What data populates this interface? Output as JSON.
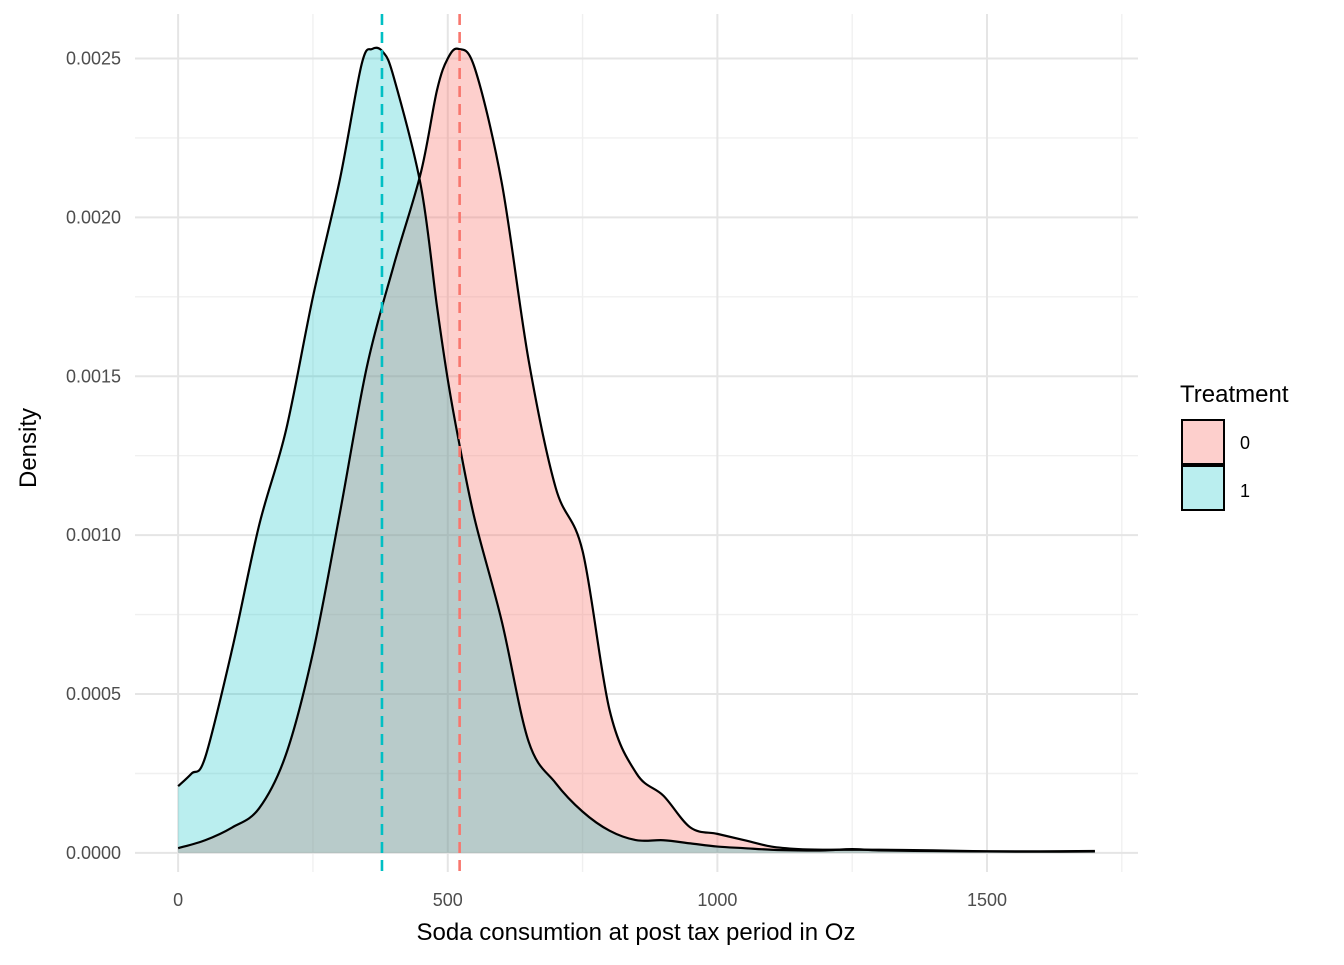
{
  "chart_data": {
    "type": "area",
    "subtype": "density",
    "title": "",
    "xlabel": "Soda consumtion at post tax period in Oz",
    "ylabel": "Density",
    "xlim": [
      -80,
      1780
    ],
    "ylim": [
      -6e-05,
      0.00264
    ],
    "x_ticks": [
      0,
      500,
      1000,
      1500
    ],
    "y_ticks": [
      0,
      0.0005,
      0.001,
      0.0015,
      0.002,
      0.0025
    ],
    "x_tick_labels": [
      "0",
      "500",
      "1000",
      "1500"
    ],
    "y_tick_labels": [
      "0.0000",
      "0.0005",
      "0.0010",
      "0.0015",
      "0.0020",
      "0.0025"
    ],
    "grid": true,
    "legend": {
      "title": "Treatment",
      "position": "right",
      "items": [
        {
          "label": "0",
          "color": "#F8766D"
        },
        {
          "label": "1",
          "color": "#00BFC4"
        }
      ]
    },
    "series": [
      {
        "name": "0",
        "color": "#F8766D",
        "fill_alpha": 0.35,
        "mean_line": 522,
        "x": [
          0,
          50,
          100,
          150,
          200,
          250,
          300,
          350,
          400,
          450,
          480,
          500,
          520,
          550,
          600,
          650,
          700,
          750,
          800,
          850,
          900,
          950,
          1000,
          1050,
          1100,
          1150,
          1200,
          1300,
          1400,
          1500,
          1600,
          1700
        ],
        "y": [
          1.5e-05,
          4e-05,
          8e-05,
          0.00014,
          0.00031,
          0.00063,
          0.00107,
          0.00153,
          0.00185,
          0.00214,
          0.0024,
          0.0025,
          0.00253,
          0.00247,
          0.00211,
          0.00155,
          0.00115,
          0.00095,
          0.00045,
          0.00025,
          0.00018,
          8e-05,
          6e-05,
          4e-05,
          2e-05,
          1.2e-05,
          1e-05,
          1e-05,
          8e-06,
          5e-06,
          4e-06,
          5e-06
        ]
      },
      {
        "name": "1",
        "color": "#00BFC4",
        "fill_alpha": 0.27,
        "mean_line": 378,
        "x": [
          0,
          25,
          50,
          100,
          150,
          200,
          250,
          300,
          340,
          360,
          380,
          400,
          450,
          480,
          500,
          520,
          550,
          600,
          650,
          700,
          750,
          800,
          850,
          900,
          950,
          1000,
          1050,
          1100,
          1150,
          1200,
          1250,
          1300,
          1400,
          1500,
          1600,
          1700
        ],
        "y": [
          0.00021,
          0.00025,
          0.0003,
          0.00064,
          0.00103,
          0.00133,
          0.00175,
          0.00212,
          0.00248,
          0.00253,
          0.00252,
          0.00244,
          0.0021,
          0.00172,
          0.00149,
          0.0013,
          0.00105,
          0.00073,
          0.00035,
          0.00022,
          0.00013,
          7e-05,
          4e-05,
          4e-05,
          3e-05,
          2e-05,
          1.5e-05,
          1e-05,
          8e-06,
          8e-06,
          1.2e-05,
          8e-06,
          6e-06,
          5e-06,
          5e-06,
          6e-06
        ]
      }
    ]
  }
}
